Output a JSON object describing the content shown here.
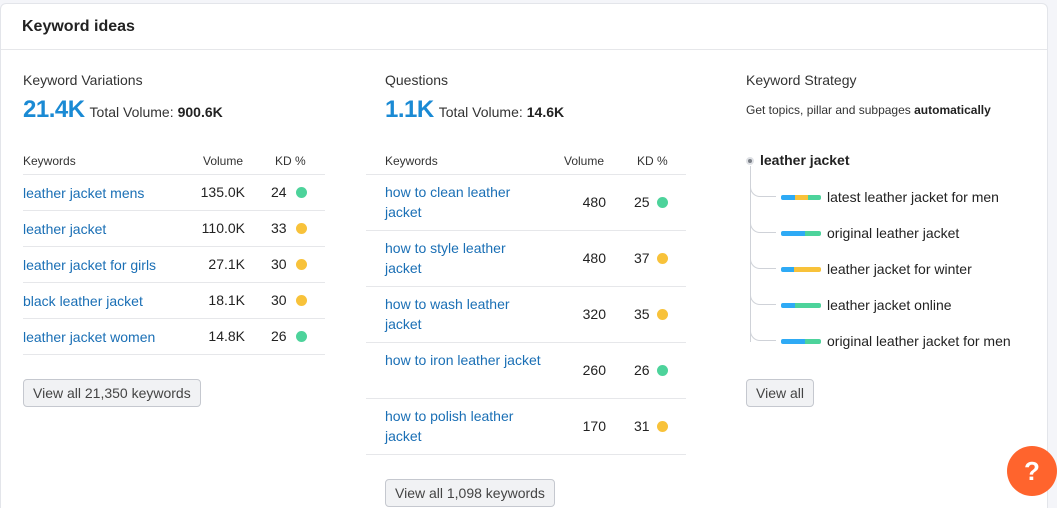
{
  "card": {
    "title": "Keyword ideas"
  },
  "variations": {
    "label": "Keyword Variations",
    "count": "21.4K",
    "total_label": "Total Volume:",
    "total_value": "900.6K",
    "headers": {
      "keywords": "Keywords",
      "volume": "Volume",
      "kd": "KD %"
    },
    "rows": [
      {
        "keyword": "leather jacket mens",
        "volume": "135.0K",
        "kd": "24",
        "kd_color": "#4dd39b"
      },
      {
        "keyword": "leather jacket",
        "volume": "110.0K",
        "kd": "33",
        "kd_color": "#f8c23a"
      },
      {
        "keyword": "leather jacket for girls",
        "volume": "27.1K",
        "kd": "30",
        "kd_color": "#f8c23a"
      },
      {
        "keyword": "black leather jacket",
        "volume": "18.1K",
        "kd": "30",
        "kd_color": "#f8c23a"
      },
      {
        "keyword": "leather jacket women",
        "volume": "14.8K",
        "kd": "26",
        "kd_color": "#4dd39b"
      }
    ],
    "view_all": "View all 21,350 keywords"
  },
  "questions": {
    "label": "Questions",
    "count": "1.1K",
    "total_label": "Total Volume:",
    "total_value": "14.6K",
    "headers": {
      "keywords": "Keywords",
      "volume": "Volume",
      "kd": "KD %"
    },
    "rows": [
      {
        "keyword": "how to clean leather jacket",
        "volume": "480",
        "kd": "25",
        "kd_color": "#4dd39b"
      },
      {
        "keyword": "how to style leather jacket",
        "volume": "480",
        "kd": "37",
        "kd_color": "#f8c23a"
      },
      {
        "keyword": "how to wash leather jacket",
        "volume": "320",
        "kd": "35",
        "kd_color": "#f8c23a"
      },
      {
        "keyword": "how to iron leather jacket",
        "volume": "260",
        "kd": "26",
        "kd_color": "#4dd39b"
      },
      {
        "keyword": "how to polish leather jacket",
        "volume": "170",
        "kd": "31",
        "kd_color": "#f8c23a"
      }
    ],
    "view_all": "View all 1,098 keywords"
  },
  "strategy": {
    "label": "Keyword Strategy",
    "subtitle_prefix": "Get topics, pillar and subpages ",
    "subtitle_bold": "automatically",
    "root": "leather jacket",
    "children": [
      {
        "label": "latest leather jacket for men",
        "bar_colors": [
          "#2eaaf5",
          "#f8c23a",
          "#4dd39b"
        ]
      },
      {
        "label": "original leather jacket",
        "bar_colors": [
          "#2eaaf5",
          "#4dd39b"
        ]
      },
      {
        "label": "leather jacket for winter",
        "bar_colors": [
          "#2eaaf5",
          "#f8c23a"
        ]
      },
      {
        "label": "leather jacket online",
        "bar_colors": [
          "#2eaaf5",
          "#4dd39b"
        ]
      },
      {
        "label": "original leather jacket for men",
        "bar_colors": [
          "#2eaaf5",
          "#4dd39b"
        ]
      }
    ],
    "view_all": "View all"
  },
  "help": {
    "label": "?"
  },
  "colors": {
    "accent": "#1a8ad4",
    "link": "#1a6fb5",
    "kd_easy": "#4dd39b",
    "kd_medium": "#f8c23a",
    "help_bg": "#ff642d"
  }
}
